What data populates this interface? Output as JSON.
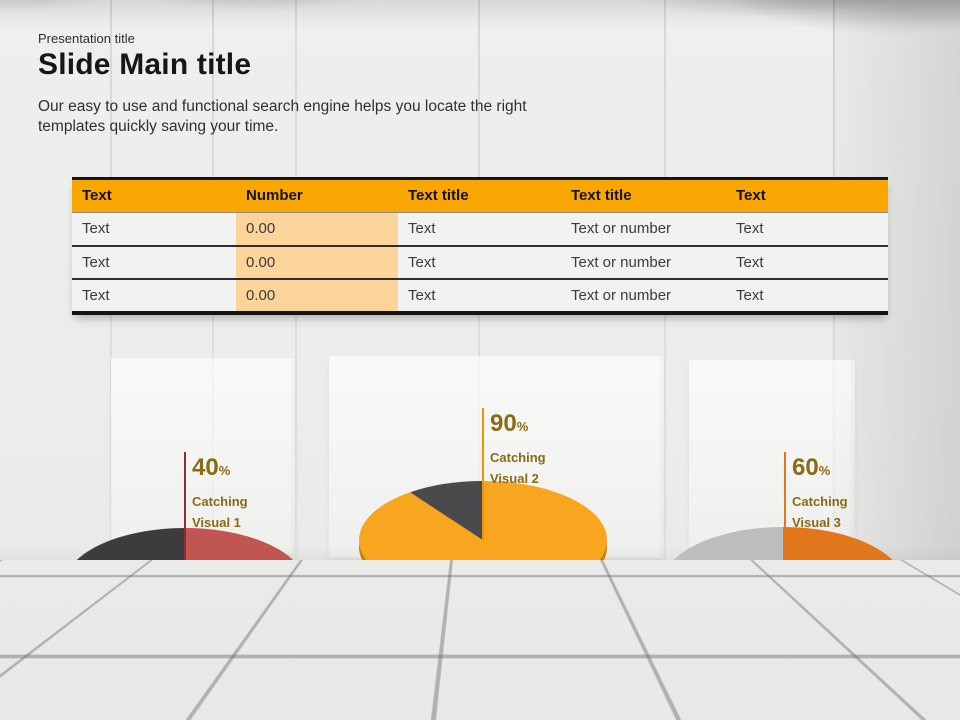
{
  "slide": {
    "eyebrow": "Presentation title",
    "title": "Slide Main title",
    "subtitle": "Our easy to use and functional search engine helps you locate the right templates quickly saving your time."
  },
  "table": {
    "headers": [
      "Text",
      "Number",
      "Text title",
      "Text title",
      "Text"
    ],
    "rows": [
      [
        "Text",
        "0.00",
        "Text",
        "Text or number",
        "Text"
      ],
      [
        "Text",
        "0.00",
        "Text",
        "Text or number",
        "Text"
      ],
      [
        "Text",
        "0.00",
        "Text",
        "Text or number",
        "Text"
      ]
    ],
    "colors": {
      "header_bg": "#F9A602",
      "number_col_bg": "#FBD49A",
      "border": "#141414",
      "row_bg": "#F2F2F1"
    }
  },
  "chart_data": [
    {
      "type": "pie",
      "title": "Catching Visual 1",
      "caption_lines": [
        "Catching",
        "Visual 1"
      ],
      "annotation_value": "40",
      "annotation_unit": "%",
      "slice_labels": [
        "highlighted",
        "remainder"
      ],
      "values": [
        40,
        60
      ],
      "colors": [
        "#C05551",
        "#3C3C3E"
      ],
      "rim_colors": [
        "#8E3431",
        "#242426"
      ],
      "line_color": "#8E2F2F",
      "label_color": "#8A6A15",
      "legend": "none"
    },
    {
      "type": "pie",
      "title": "Catching Visual 2",
      "caption_lines": [
        "Catching",
        "Visual 2"
      ],
      "annotation_value": "90",
      "annotation_unit": "%",
      "slice_labels": [
        "highlighted",
        "remainder"
      ],
      "values": [
        90,
        10
      ],
      "colors": [
        "#F8A61F",
        "#4A4A4D"
      ],
      "rim_colors": [
        "#C8820C",
        "#2F2F31"
      ],
      "line_color": "#EF9405",
      "label_color": "#8A6A15",
      "legend": "none"
    },
    {
      "type": "pie",
      "title": "Catching Visual 3",
      "caption_lines": [
        "Catching",
        "Visual 3"
      ],
      "annotation_value": "60",
      "annotation_unit": "%",
      "slice_labels": [
        "highlighted",
        "remainder"
      ],
      "values": [
        60,
        40
      ],
      "colors": [
        "#E2761B",
        "#BDBDBD"
      ],
      "rim_colors": [
        "#B55A0E",
        "#969696"
      ],
      "line_color": "#E2761B",
      "label_color": "#8A6A15",
      "legend": "none"
    },
    {
      "type": "table",
      "columns": [
        "Text",
        "Number",
        "Text title",
        "Text title",
        "Text"
      ],
      "rows": [
        [
          "Text",
          "0.00",
          "Text",
          "Text or number",
          "Text"
        ],
        [
          "Text",
          "0.00",
          "Text",
          "Text or number",
          "Text"
        ],
        [
          "Text",
          "0.00",
          "Text",
          "Text or number",
          "Text"
        ]
      ]
    }
  ],
  "scene": {
    "wall_color": "#ECECEA",
    "floor_color": "#E5E5E3"
  }
}
